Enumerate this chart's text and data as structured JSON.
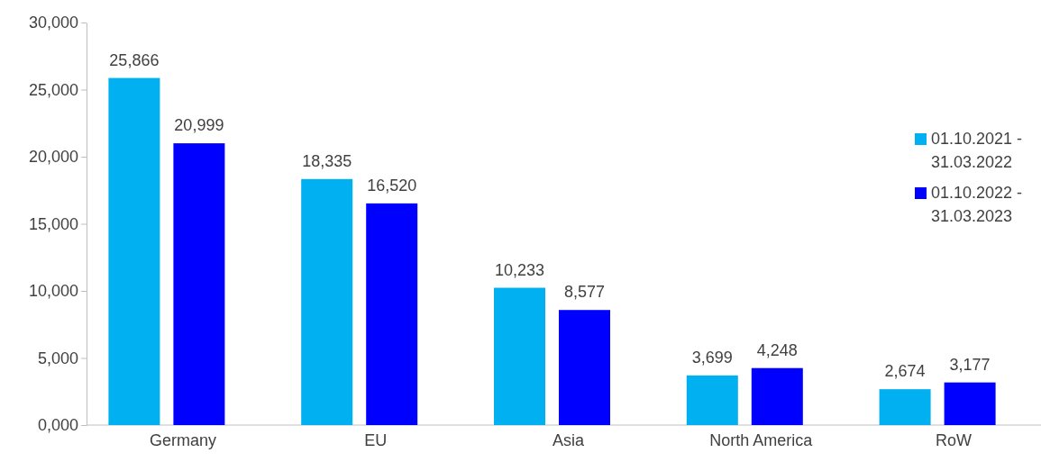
{
  "chart_data": {
    "type": "bar",
    "categories": [
      "Germany",
      "EU",
      "Asia",
      "North America",
      "RoW"
    ],
    "series": [
      {
        "name": "01.10.2021 - 31.03.2022",
        "color": "#00b0f0",
        "values": [
          25866,
          18335,
          10233,
          3699,
          2674
        ],
        "value_labels": [
          "25,866",
          "18,335",
          "10,233",
          "3,699",
          "2,674"
        ]
      },
      {
        "name": "01.10.2022 - 31.03.2023",
        "color": "#0000ff",
        "values": [
          20999,
          16520,
          8577,
          4248,
          3177
        ],
        "value_labels": [
          "20,999",
          "16,520",
          "8,577",
          "4,248",
          "3,177"
        ]
      }
    ],
    "ylim": [
      0,
      30000
    ],
    "yticks": [
      {
        "value": 0,
        "label": "0,000"
      },
      {
        "value": 5000,
        "label": "5,000"
      },
      {
        "value": 10000,
        "label": "10,000"
      },
      {
        "value": 15000,
        "label": "15,000"
      },
      {
        "value": 20000,
        "label": "20,000"
      },
      {
        "value": 25000,
        "label": "25,000"
      },
      {
        "value": 30000,
        "label": "30,000"
      }
    ],
    "legend": "right"
  }
}
